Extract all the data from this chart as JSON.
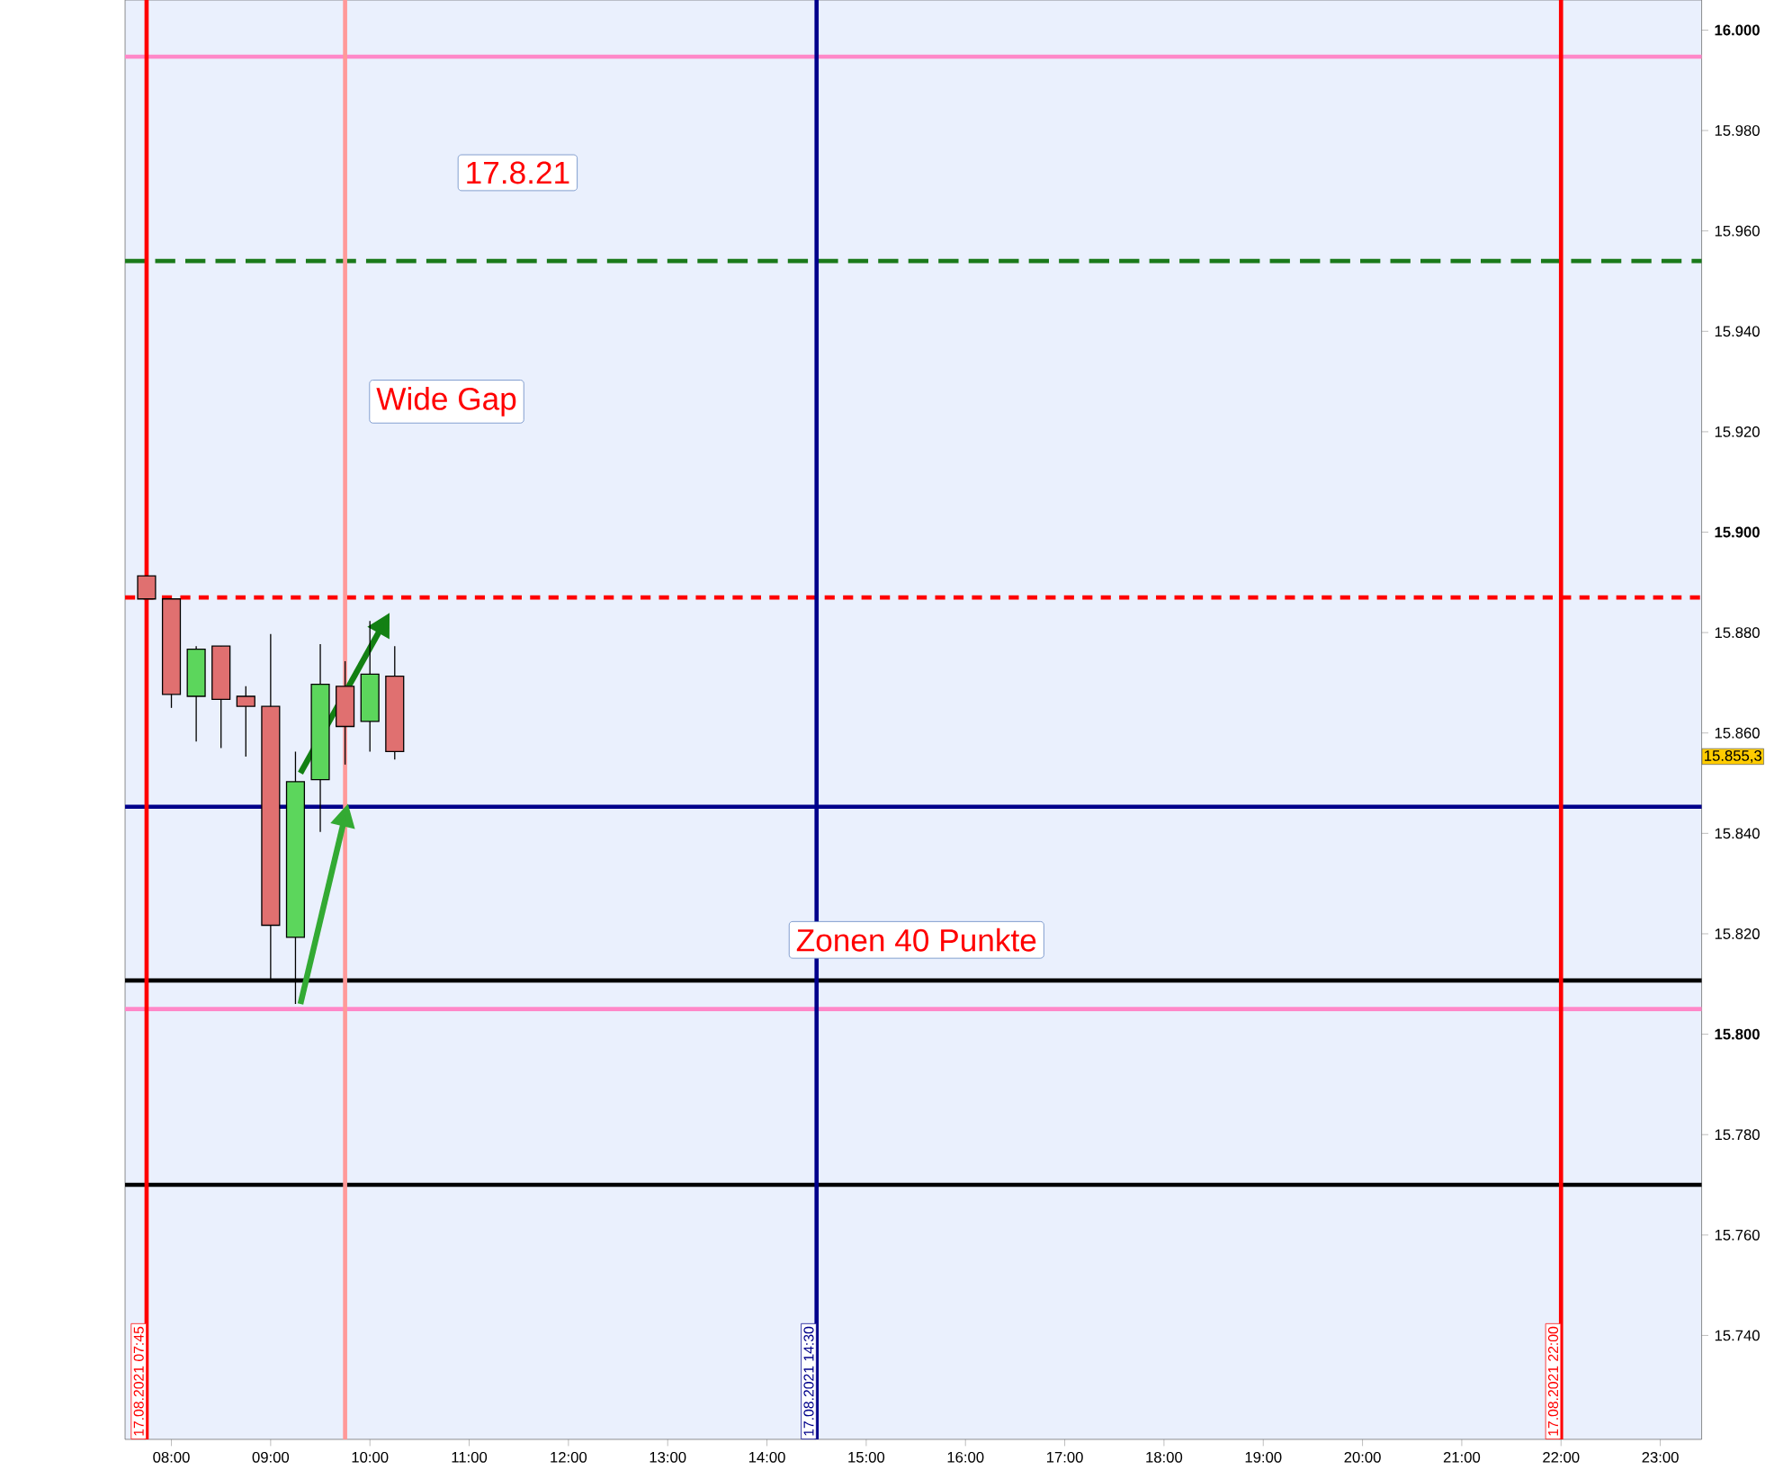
{
  "chart_data": {
    "type": "candlestick",
    "x": [
      "2021-08-17T07:45",
      "2021-08-17T08:00",
      "2021-08-17T08:15",
      "2021-08-17T08:30",
      "2021-08-17T08:45",
      "2021-08-17T09:00",
      "2021-08-17T09:15",
      "2021-08-17T09:30",
      "2021-08-17T09:45",
      "2021-08-17T10:00",
      "2021-08-17T10:15"
    ],
    "ohlc": [
      [
        15891.3,
        15891.3,
        15886.7,
        15886.7
      ],
      [
        15886.7,
        15886.7,
        15865.0,
        15867.7
      ],
      [
        15867.3,
        15877.3,
        15858.3,
        15876.7
      ],
      [
        15877.3,
        15877.3,
        15857.0,
        15866.7
      ],
      [
        15867.3,
        15869.3,
        15855.3,
        15865.3
      ],
      [
        15865.3,
        15879.7,
        15810.7,
        15821.7
      ],
      [
        15819.3,
        15856.3,
        15806.0,
        15850.3
      ],
      [
        15850.7,
        15877.7,
        15840.3,
        15869.7
      ],
      [
        15869.3,
        15874.3,
        15853.7,
        15861.3
      ],
      [
        15862.3,
        15882.3,
        15856.3,
        15871.7
      ],
      [
        15871.3,
        15877.3,
        15854.7,
        15856.3
      ]
    ],
    "colors": [
      "#e07070",
      "#e07070",
      "#5cd65c",
      "#e07070",
      "#e07070",
      "#e07070",
      "#5cd65c",
      "#5cd65c",
      "#e07070",
      "#5cd65c",
      "#e07070"
    ],
    "xlim": [
      "2021-08-17T07:32",
      "2021-08-17T23:25"
    ],
    "xticks": [
      {
        "value": "2021-08-17T08:00",
        "label": "08:00"
      },
      {
        "value": "2021-08-17T09:00",
        "label": "09:00"
      },
      {
        "value": "2021-08-17T10:00",
        "label": "10:00"
      },
      {
        "value": "2021-08-17T11:00",
        "label": "11:00"
      },
      {
        "value": "2021-08-17T12:00",
        "label": "12:00"
      },
      {
        "value": "2021-08-17T13:00",
        "label": "13:00"
      },
      {
        "value": "2021-08-17T14:00",
        "label": "14:00"
      },
      {
        "value": "2021-08-17T15:00",
        "label": "15:00"
      },
      {
        "value": "2021-08-17T16:00",
        "label": "16:00"
      },
      {
        "value": "2021-08-17T17:00",
        "label": "17:00"
      },
      {
        "value": "2021-08-17T18:00",
        "label": "18:00"
      },
      {
        "value": "2021-08-17T19:00",
        "label": "19:00"
      },
      {
        "value": "2021-08-17T20:00",
        "label": "20:00"
      },
      {
        "value": "2021-08-17T21:00",
        "label": "21:00"
      },
      {
        "value": "2021-08-17T22:00",
        "label": "22:00"
      },
      {
        "value": "2021-08-17T23:00",
        "label": "23:00"
      }
    ],
    "ylim": [
      15719.3,
      16006
    ],
    "yticks": [
      {
        "value": 16000,
        "label": "16.000"
      },
      {
        "value": 15980,
        "label": "15.980"
      },
      {
        "value": 15960,
        "label": "15.960"
      },
      {
        "value": 15940,
        "label": "15.940"
      },
      {
        "value": 15920,
        "label": "15.920"
      },
      {
        "value": 15900,
        "label": "15.900"
      },
      {
        "value": 15880,
        "label": "15.880"
      },
      {
        "value": 15860,
        "label": "15.860"
      },
      {
        "value": 15840,
        "label": "15.840"
      },
      {
        "value": 15820,
        "label": "15.820"
      },
      {
        "value": 15800,
        "label": "15.800"
      },
      {
        "value": 15780,
        "label": "15.780"
      },
      {
        "value": 15760,
        "label": "15.760"
      },
      {
        "value": 15740,
        "label": "15.740"
      }
    ],
    "ref_lines": [
      {
        "axis": "y",
        "value": 15994.7,
        "label": null,
        "color": "#ff88c8"
      },
      {
        "axis": "y",
        "value": 15954,
        "label": null,
        "color": "#1a7a1a",
        "line_style": "dashed"
      },
      {
        "axis": "y",
        "value": 15887,
        "label": null,
        "color": "#ff0000",
        "line_style": "dotted"
      },
      {
        "axis": "y",
        "value": 15845.3,
        "label": null,
        "color": "#00008b"
      },
      {
        "axis": "y",
        "value": 15810.7,
        "label": null,
        "color": "#000000"
      },
      {
        "axis": "y",
        "value": 15805,
        "label": null,
        "color": "#ff88c8"
      },
      {
        "axis": "y",
        "value": 15770,
        "label": null,
        "color": "#000000"
      },
      {
        "axis": "x",
        "value": "2021-08-17T07:45",
        "label": "17.08.2021 07:45",
        "color": "#ff0000"
      },
      {
        "axis": "x",
        "value": "2021-08-17T09:45",
        "label": null,
        "color": "#ff9999"
      },
      {
        "axis": "x",
        "value": "2021-08-17T14:30",
        "label": "17.08.2021 14:30",
        "color": "#00008b"
      },
      {
        "axis": "x",
        "value": "2021-08-17T22:00",
        "label": "17.08.2021 22:00",
        "color": "#ff0000"
      }
    ],
    "annotations": [
      "17.8.21",
      "Wide Gap",
      "Zonen 40 Punkte",
      "15.855,3"
    ]
  }
}
